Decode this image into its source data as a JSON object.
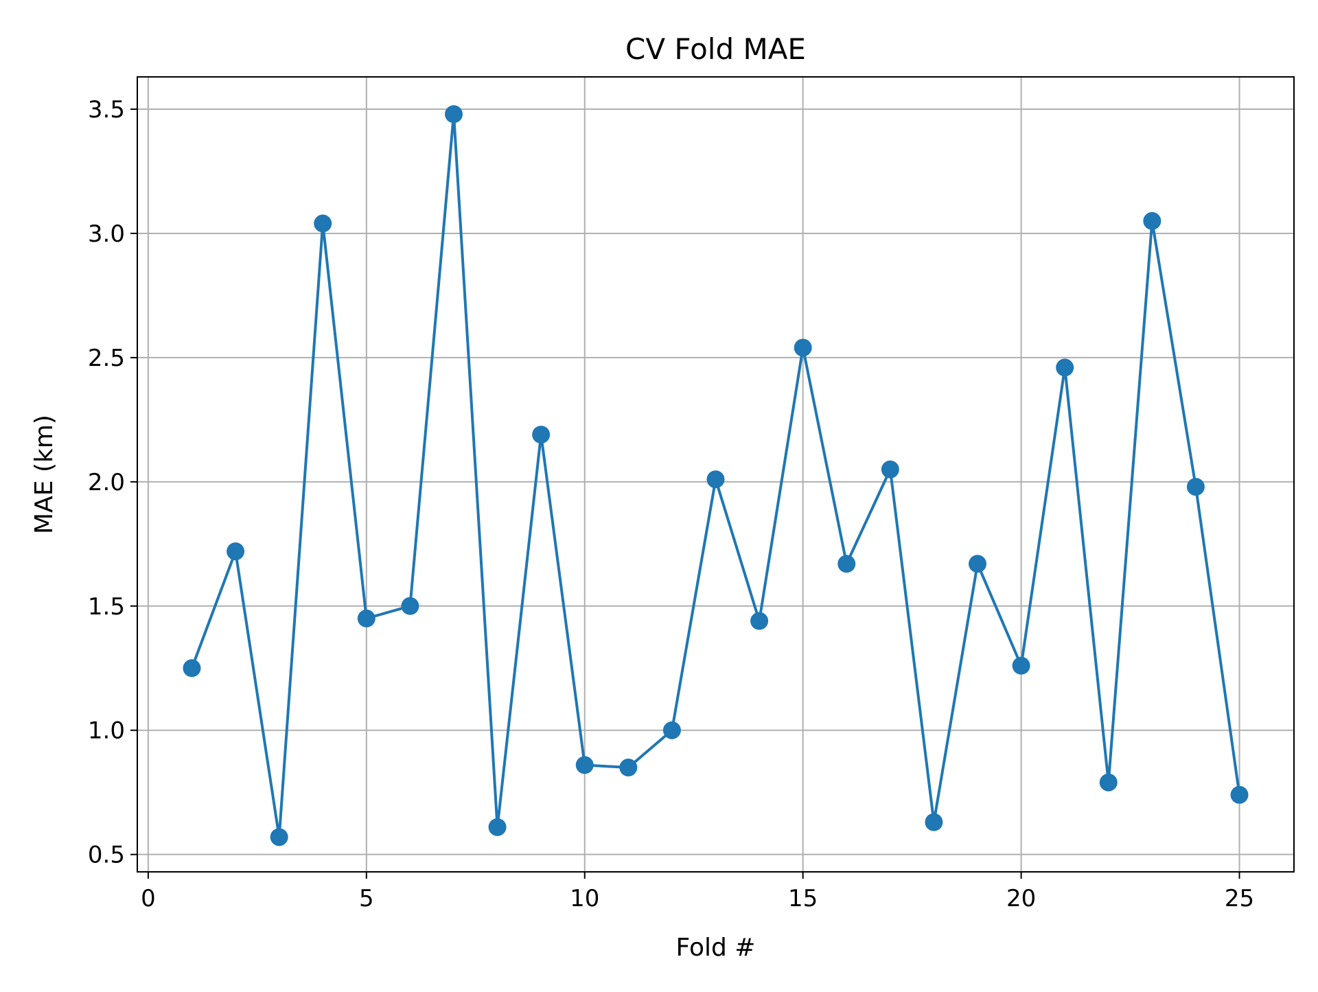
{
  "chart_data": {
    "type": "line",
    "title": "CV Fold MAE",
    "xlabel": "Fold #",
    "ylabel": "MAE (km)",
    "xlim": [
      -0.25,
      26.25
    ],
    "ylim": [
      0.43,
      3.63
    ],
    "xticks": [
      0,
      5,
      10,
      15,
      20,
      25
    ],
    "yticks": [
      0.5,
      1.0,
      1.5,
      2.0,
      2.5,
      3.0,
      3.5
    ],
    "xtick_labels": [
      "0",
      "5",
      "10",
      "15",
      "20",
      "25"
    ],
    "ytick_labels": [
      "0.5",
      "1.0",
      "1.5",
      "2.0",
      "2.5",
      "3.0",
      "3.5"
    ],
    "grid": true,
    "legend": "none",
    "color": "#1f77b4",
    "series": [
      {
        "x": [
          1,
          2,
          3,
          4,
          5,
          6,
          7,
          8,
          9,
          10,
          11,
          12,
          13,
          14,
          15,
          16,
          17,
          18,
          19,
          20,
          21,
          22,
          23,
          24,
          25
        ],
        "values": [
          1.25,
          1.72,
          0.57,
          3.04,
          1.45,
          1.5,
          3.48,
          0.61,
          2.19,
          0.86,
          0.85,
          1.0,
          2.01,
          1.44,
          2.54,
          1.67,
          2.05,
          0.63,
          1.67,
          1.26,
          2.46,
          0.79,
          3.05,
          1.98,
          0.74
        ]
      }
    ]
  }
}
